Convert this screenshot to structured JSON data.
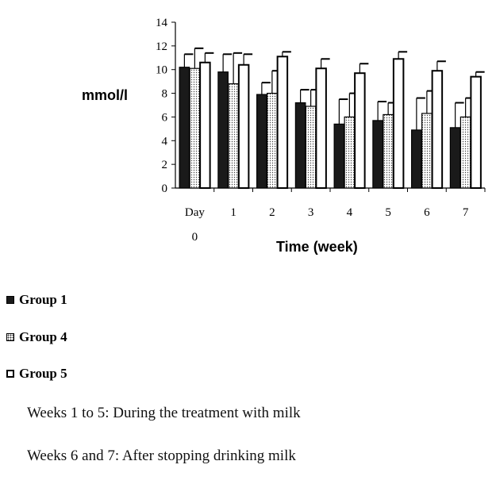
{
  "chart_data": {
    "type": "bar",
    "title": "",
    "ylabel": "mmol/l",
    "xlabel": "Time (week)",
    "ylim": [
      0,
      14
    ],
    "yticks": [
      0,
      2,
      4,
      6,
      8,
      10,
      12,
      14
    ],
    "categories": [
      "Day 0",
      "1",
      "2",
      "3",
      "4",
      "5",
      "6",
      "7"
    ],
    "grid": false,
    "error_bars": true,
    "series": [
      {
        "name": "Group 1",
        "values": [
          10.2,
          9.8,
          7.9,
          7.2,
          5.4,
          5.7,
          4.9,
          5.1
        ],
        "errors": [
          1.1,
          1.5,
          1.0,
          1.1,
          2.1,
          1.6,
          2.7,
          2.1
        ],
        "fill": "#1a1a1a"
      },
      {
        "name": "Group 4",
        "values": [
          10.1,
          8.8,
          8.0,
          6.9,
          6.0,
          6.2,
          6.3,
          6.0
        ],
        "errors": [
          1.7,
          2.6,
          1.9,
          1.4,
          2.0,
          1.0,
          1.9,
          1.6
        ],
        "fill": "#f2f2f2"
      },
      {
        "name": "Group 5",
        "values": [
          10.6,
          10.4,
          11.1,
          10.1,
          9.7,
          10.9,
          9.9,
          9.4
        ],
        "errors": [
          0.8,
          0.9,
          0.4,
          0.8,
          0.8,
          0.6,
          0.8,
          0.4
        ],
        "fill": "#ffffff"
      }
    ],
    "legend_position": "bottom-left"
  },
  "legend": {
    "group1": "Group 1",
    "group4": "Group 4",
    "group5": "Group 5"
  },
  "notes": {
    "line1": "Weeks 1 to 5: During the treatment with milk",
    "line2": "Weeks 6 and 7: After stopping drinking milk"
  }
}
